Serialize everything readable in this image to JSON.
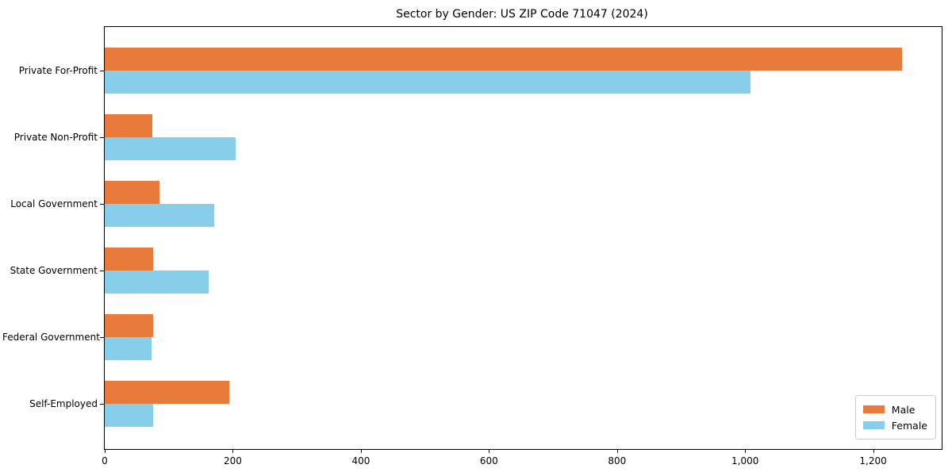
{
  "chart_data": {
    "type": "bar",
    "orientation": "horizontal",
    "title": "Sector by Gender: US ZIP Code 71047 (2024)",
    "xlabel": "",
    "ylabel": "",
    "categories": [
      "Private For-Profit",
      "Private Non-Profit",
      "Local Government",
      "State Government",
      "Federal Government",
      "Self-Employed"
    ],
    "series": [
      {
        "name": "Male",
        "color": "#e87a3c",
        "values": [
          1245,
          74,
          85,
          76,
          76,
          195
        ]
      },
      {
        "name": "Female",
        "color": "#87ceeb",
        "values": [
          1008,
          204,
          171,
          162,
          73,
          76
        ]
      }
    ],
    "xlim": [
      0,
      1307
    ],
    "xticks": {
      "values": [
        0,
        200,
        400,
        600,
        800,
        1000,
        1200
      ],
      "labels": [
        "0",
        "200",
        "400",
        "600",
        "800",
        "1,000",
        "1,200"
      ]
    },
    "legend": {
      "position": "lower right",
      "entries": [
        "Male",
        "Female"
      ]
    },
    "grid": false,
    "plot_background": "#ffffff",
    "axis_color": "#000000"
  }
}
